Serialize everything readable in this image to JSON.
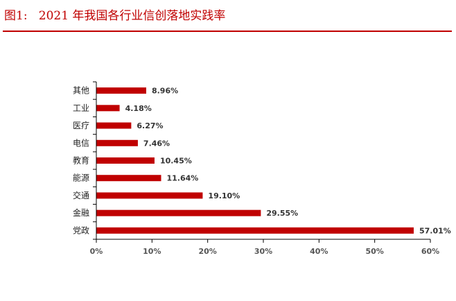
{
  "figure": {
    "caption_prefix": "图1:",
    "caption_title": "2021 年我国各行业信创落地实践率"
  },
  "colors": {
    "bar": "#c00000",
    "caption": "#c00000",
    "axis": "#000000"
  },
  "chart_data": {
    "type": "bar",
    "orientation": "horizontal",
    "title": "2021 年我国各行业信创落地实践率",
    "categories": [
      "其他",
      "工业",
      "医疗",
      "电信",
      "教育",
      "能源",
      "交通",
      "金融",
      "党政"
    ],
    "values": [
      8.96,
      4.18,
      6.27,
      7.46,
      10.45,
      11.64,
      19.1,
      29.55,
      57.01
    ],
    "value_labels": [
      "8.96%",
      "4.18%",
      "6.27%",
      "7.46%",
      "10.45%",
      "11.64%",
      "19.10%",
      "29.55%",
      "57.01%"
    ],
    "xlim": [
      0,
      60
    ],
    "x_ticks": [
      0,
      10,
      20,
      30,
      40,
      50,
      60
    ],
    "x_tick_labels": [
      "0%",
      "10%",
      "20%",
      "30%",
      "40%",
      "50%",
      "60%"
    ],
    "xlabel": "",
    "ylabel": "",
    "grid": false,
    "legend": "none"
  }
}
